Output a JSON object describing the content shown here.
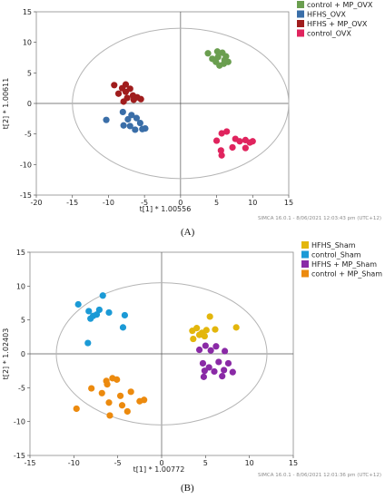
{
  "chart_data": [
    {
      "type": "scatter",
      "panel_label": "(A)",
      "xlabel": "t[1] * 1.00556",
      "ylabel": "t[2] * 1.00611",
      "xlim": [
        -20,
        15
      ],
      "ylim": [
        -15,
        15
      ],
      "xticks": [
        -20,
        -15,
        -10,
        -5,
        0,
        5,
        10,
        15
      ],
      "yticks": [
        -15,
        -10,
        -5,
        0,
        5,
        10,
        15
      ],
      "ellipse": {
        "rx": 15.0,
        "ry": 12.3
      },
      "legend_position": "right",
      "footer": "SIMCA 16.0.1 - 8/06/2021 12:03:43 pm (UTC+12)",
      "series": [
        {
          "name": "control + MP_OVX",
          "color": "#6a9e4f",
          "points": [
            [
              3.8,
              8.2
            ],
            [
              4.4,
              7.3
            ],
            [
              5.1,
              8.5
            ],
            [
              5.8,
              8.3
            ],
            [
              6.3,
              7.7
            ],
            [
              4.9,
              6.8
            ],
            [
              5.4,
              6.2
            ],
            [
              6.0,
              6.5
            ],
            [
              6.6,
              6.8
            ],
            [
              5.2,
              7.6
            ],
            [
              6.1,
              7.1
            ]
          ]
        },
        {
          "name": "HFHS_OVX",
          "color": "#3a6ea8",
          "points": [
            [
              -10.3,
              -2.7
            ],
            [
              -7.9,
              -3.6
            ],
            [
              -7.3,
              -2.6
            ],
            [
              -6.8,
              -1.9
            ],
            [
              -6.1,
              -2.4
            ],
            [
              -5.6,
              -3.2
            ],
            [
              -4.9,
              -4.1
            ],
            [
              -6.3,
              -4.3
            ],
            [
              -8.0,
              -1.4
            ],
            [
              -5.3,
              -4.2
            ],
            [
              -7.0,
              -3.7
            ]
          ]
        },
        {
          "name": "HFHS + MP_OVX",
          "color": "#a01d1d",
          "points": [
            [
              -9.2,
              3.0
            ],
            [
              -8.1,
              2.5
            ],
            [
              -7.6,
              1.9
            ],
            [
              -7.0,
              2.4
            ],
            [
              -6.6,
              1.3
            ],
            [
              -6.0,
              1.0
            ],
            [
              -5.5,
              0.7
            ],
            [
              -7.9,
              0.3
            ],
            [
              -7.4,
              0.9
            ],
            [
              -6.5,
              0.6
            ],
            [
              -8.6,
              1.6
            ],
            [
              -7.6,
              3.1
            ]
          ]
        },
        {
          "name": "control_OVX",
          "color": "#e0245e",
          "points": [
            [
              5.0,
              -6.1
            ],
            [
              5.7,
              -4.9
            ],
            [
              6.4,
              -4.6
            ],
            [
              7.6,
              -5.8
            ],
            [
              8.2,
              -6.2
            ],
            [
              9.0,
              -6.0
            ],
            [
              9.6,
              -6.4
            ],
            [
              10.0,
              -6.2
            ],
            [
              5.6,
              -7.7
            ],
            [
              5.7,
              -8.5
            ],
            [
              7.2,
              -7.2
            ],
            [
              9.0,
              -7.3
            ]
          ]
        }
      ]
    },
    {
      "type": "scatter",
      "panel_label": "(B)",
      "xlabel": "t[1] * 1.00772",
      "ylabel": "t[2] * 1.02403",
      "xlim": [
        -15,
        15
      ],
      "ylim": [
        -15,
        15
      ],
      "xticks": [
        -15,
        -10,
        -5,
        0,
        5,
        10,
        15
      ],
      "yticks": [
        -15,
        -10,
        -5,
        0,
        5,
        10,
        15
      ],
      "ellipse": {
        "rx": 12.0,
        "ry": 10.5
      },
      "legend_position": "right",
      "footer": "SIMCA 16.0.1 - 8/06/2021 12:01:36 pm (UTC+12)",
      "series": [
        {
          "name": "HFHS_Sham",
          "color": "#e3b60c",
          "points": [
            [
              3.5,
              3.4
            ],
            [
              4.0,
              3.8
            ],
            [
              4.6,
              3.1
            ],
            [
              5.1,
              3.5
            ],
            [
              5.5,
              5.5
            ],
            [
              4.3,
              2.8
            ],
            [
              3.6,
              2.2
            ],
            [
              4.9,
              2.6
            ],
            [
              6.1,
              3.6
            ],
            [
              8.5,
              3.9
            ]
          ]
        },
        {
          "name": "control_Sham",
          "color": "#1b9ad6",
          "points": [
            [
              -9.5,
              7.3
            ],
            [
              -8.3,
              6.3
            ],
            [
              -7.8,
              5.6
            ],
            [
              -7.1,
              6.5
            ],
            [
              -6.7,
              8.6
            ],
            [
              -7.4,
              5.8
            ],
            [
              -6.0,
              6.1
            ],
            [
              -8.1,
              5.2
            ],
            [
              -4.2,
              5.7
            ],
            [
              -8.4,
              1.6
            ],
            [
              -4.4,
              3.9
            ]
          ]
        },
        {
          "name": "HFHS + MP_Sham",
          "color": "#8a2aa6",
          "points": [
            [
              4.3,
              0.6
            ],
            [
              5.0,
              1.2
            ],
            [
              5.6,
              0.5
            ],
            [
              6.2,
              1.1
            ],
            [
              4.7,
              -1.4
            ],
            [
              5.4,
              -2.0
            ],
            [
              6.5,
              -1.2
            ],
            [
              6.0,
              -2.6
            ],
            [
              7.1,
              -2.4
            ],
            [
              4.8,
              -3.4
            ],
            [
              7.6,
              -1.4
            ],
            [
              6.9,
              -3.3
            ],
            [
              8.1,
              -2.7
            ],
            [
              4.9,
              -2.5
            ],
            [
              7.2,
              0.4
            ]
          ]
        },
        {
          "name": "control + MP_Sham",
          "color": "#ec8a0e",
          "points": [
            [
              -9.7,
              -8.1
            ],
            [
              -8.0,
              -5.1
            ],
            [
              -6.2,
              -4.5
            ],
            [
              -5.6,
              -3.6
            ],
            [
              -5.1,
              -3.8
            ],
            [
              -6.8,
              -5.8
            ],
            [
              -6.0,
              -7.2
            ],
            [
              -4.7,
              -6.2
            ],
            [
              -3.5,
              -5.6
            ],
            [
              -2.5,
              -7.0
            ],
            [
              -2.0,
              -6.8
            ],
            [
              -4.5,
              -7.6
            ],
            [
              -5.9,
              -9.1
            ],
            [
              -3.9,
              -8.5
            ],
            [
              -6.3,
              -4.0
            ]
          ]
        }
      ]
    }
  ]
}
